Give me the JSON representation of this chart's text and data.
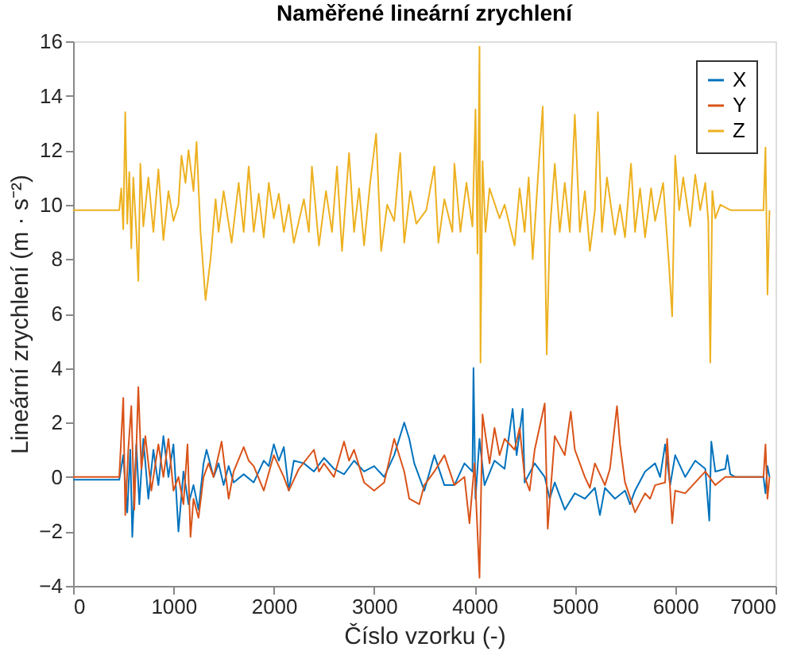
{
  "chart_data": {
    "type": "line",
    "title": "Naměřené lineární zrychlení",
    "xlabel": "Číslo vzorku (-)",
    "ylabel": "Lineární zrychlení (m · s⁻²)",
    "xlim": [
      0,
      7000
    ],
    "xticks": [
      0,
      1000,
      2000,
      3000,
      4000,
      5000,
      6000,
      7000
    ],
    "ylim": [
      -4,
      16
    ],
    "yticks": [
      -4,
      -2,
      0,
      2,
      4,
      6,
      8,
      10,
      12,
      14,
      16
    ],
    "grid": false,
    "legend": "top right",
    "marker": "none",
    "line_style": "solid",
    "series": [
      {
        "name": "X",
        "color": "#0072bd",
        "x": [
          0,
          460,
          500,
          540,
          570,
          590,
          630,
          660,
          700,
          750,
          800,
          850,
          900,
          950,
          1000,
          1050,
          1100,
          1150,
          1200,
          1250,
          1300,
          1330,
          1400,
          1450,
          1500,
          1550,
          1600,
          1700,
          1800,
          1900,
          1950,
          2000,
          2050,
          2100,
          2150,
          2200,
          2300,
          2400,
          2500,
          2600,
          2700,
          2800,
          2900,
          3000,
          3100,
          3200,
          3300,
          3350,
          3400,
          3500,
          3600,
          3700,
          3800,
          3900,
          3980,
          3990,
          4010,
          4050,
          4100,
          4200,
          4300,
          4380,
          4420,
          4480,
          4500,
          4600,
          4700,
          4750,
          4800,
          4900,
          5000,
          5100,
          5200,
          5250,
          5300,
          5400,
          5500,
          5550,
          5600,
          5700,
          5800,
          5850,
          5900,
          5950,
          6000,
          6100,
          6200,
          6300,
          6340,
          6360,
          6400,
          6500,
          6520,
          6550,
          6600,
          6880,
          6900,
          6920,
          6940
        ],
        "values": [
          -0.1,
          -0.1,
          0.8,
          -1.3,
          1.0,
          -2.2,
          1.2,
          -1.0,
          1.4,
          -0.8,
          1.0,
          -0.3,
          1.5,
          0.0,
          1.2,
          -2.0,
          0.2,
          -1.0,
          -0.3,
          -1.2,
          0.5,
          1.0,
          0.0,
          0.5,
          -0.3,
          0.4,
          -0.2,
          0.1,
          -0.2,
          0.6,
          0.4,
          1.2,
          0.6,
          1.1,
          -0.5,
          0.6,
          0.5,
          0.2,
          0.7,
          0.3,
          0.1,
          0.6,
          0.2,
          0.4,
          0.0,
          0.8,
          2.0,
          1.4,
          0.5,
          -0.5,
          0.8,
          -0.3,
          -0.3,
          0.5,
          0.2,
          4.0,
          -0.8,
          1.4,
          -0.3,
          0.6,
          0.3,
          2.5,
          0.8,
          2.5,
          -0.2,
          0.5,
          0.0,
          -0.8,
          -0.2,
          -1.2,
          -0.6,
          -0.8,
          -0.4,
          -1.4,
          -0.4,
          -0.8,
          -0.5,
          -1.0,
          -0.5,
          0.2,
          0.5,
          0.0,
          1.2,
          -0.3,
          0.8,
          0.0,
          0.6,
          0.3,
          -1.6,
          1.3,
          0.2,
          0.3,
          0.8,
          0.1,
          0.0,
          0.0,
          -0.6,
          0.4,
          0.0
        ]
      },
      {
        "name": "Y",
        "color": "#d95319",
        "x": [
          0,
          460,
          500,
          520,
          550,
          580,
          610,
          650,
          680,
          720,
          780,
          850,
          900,
          950,
          1000,
          1050,
          1100,
          1140,
          1170,
          1200,
          1250,
          1300,
          1350,
          1400,
          1480,
          1550,
          1600,
          1700,
          1750,
          1800,
          1900,
          2000,
          2100,
          2150,
          2250,
          2400,
          2450,
          2500,
          2600,
          2700,
          2750,
          2800,
          2900,
          3000,
          3100,
          3200,
          3300,
          3350,
          3450,
          3500,
          3600,
          3700,
          3800,
          3900,
          3950,
          4000,
          4050,
          4080,
          4150,
          4200,
          4250,
          4300,
          4400,
          4450,
          4500,
          4550,
          4600,
          4700,
          4730,
          4800,
          4900,
          4960,
          5000,
          5100,
          5150,
          5200,
          5300,
          5350,
          5420,
          5450,
          5500,
          5600,
          5700,
          5750,
          5800,
          5900,
          5920,
          5970,
          6000,
          6100,
          6200,
          6300,
          6400,
          6500,
          6600,
          6880,
          6900,
          6920,
          6940
        ],
        "values": [
          0.0,
          0.0,
          2.9,
          -1.4,
          1.0,
          2.6,
          -1.2,
          3.3,
          0.3,
          1.5,
          -0.5,
          1.2,
          0.0,
          1.4,
          -0.5,
          0.0,
          -1.0,
          1.2,
          -2.2,
          -0.8,
          -1.5,
          0.0,
          0.5,
          0.0,
          1.3,
          -0.8,
          0.2,
          1.1,
          0.6,
          0.4,
          -0.5,
          0.8,
          0.0,
          -0.5,
          0.3,
          1.0,
          0.2,
          0.5,
          0.0,
          1.3,
          0.6,
          1.0,
          -0.2,
          -0.5,
          -0.2,
          1.4,
          0.2,
          -0.8,
          -1.0,
          -0.3,
          0.2,
          0.8,
          -0.3,
          0.0,
          -1.7,
          0.5,
          -3.7,
          2.3,
          0.5,
          1.8,
          0.8,
          1.4,
          1.0,
          1.8,
          0.0,
          -0.5,
          1.0,
          2.7,
          -1.9,
          1.5,
          0.8,
          2.4,
          1.0,
          0.0,
          -0.4,
          0.5,
          -0.3,
          0.3,
          2.6,
          1.2,
          -0.2,
          -1.3,
          -0.6,
          -0.8,
          -0.3,
          -0.2,
          1.4,
          -1.7,
          -0.5,
          -0.6,
          -0.2,
          0.2,
          -0.3,
          0.0,
          0.0,
          0.0,
          1.2,
          -0.8,
          0.0
        ]
      },
      {
        "name": "Z",
        "color": "#edb120",
        "x": [
          0,
          460,
          480,
          500,
          520,
          540,
          560,
          580,
          600,
          630,
          650,
          670,
          700,
          750,
          800,
          850,
          900,
          950,
          1000,
          1050,
          1080,
          1120,
          1150,
          1200,
          1230,
          1270,
          1320,
          1370,
          1420,
          1450,
          1500,
          1580,
          1650,
          1700,
          1750,
          1800,
          1850,
          1900,
          1950,
          2000,
          2050,
          2100,
          2150,
          2200,
          2300,
          2350,
          2380,
          2450,
          2520,
          2580,
          2630,
          2680,
          2750,
          2800,
          2850,
          2900,
          2960,
          3020,
          3070,
          3130,
          3200,
          3260,
          3300,
          3360,
          3420,
          3520,
          3600,
          3640,
          3700,
          3780,
          3800,
          3860,
          3920,
          3980,
          4010,
          4030,
          4050,
          4060,
          4080,
          4110,
          4150,
          4250,
          4300,
          4400,
          4450,
          4500,
          4540,
          4580,
          4650,
          4680,
          4720,
          4750,
          4800,
          4850,
          4900,
          4950,
          5000,
          5050,
          5100,
          5150,
          5200,
          5230,
          5270,
          5320,
          5400,
          5450,
          5500,
          5560,
          5600,
          5650,
          5700,
          5760,
          5800,
          5880,
          5940,
          5970,
          6000,
          6040,
          6080,
          6150,
          6200,
          6250,
          6300,
          6330,
          6350,
          6370,
          6400,
          6450,
          6550,
          6880,
          6900,
          6920,
          6940
        ],
        "values": [
          9.8,
          9.8,
          10.6,
          9.1,
          13.4,
          9.3,
          11.2,
          8.4,
          11.0,
          9.0,
          7.2,
          11.5,
          9.2,
          11.0,
          9.0,
          11.3,
          8.7,
          10.5,
          9.4,
          10.0,
          11.8,
          10.8,
          12.0,
          10.5,
          12.3,
          9.0,
          6.5,
          8.0,
          10.2,
          9.0,
          10.5,
          8.6,
          10.8,
          9.0,
          11.4,
          9.0,
          10.4,
          8.8,
          10.8,
          9.5,
          10.4,
          9.0,
          10.0,
          8.6,
          10.2,
          9.0,
          11.4,
          8.5,
          10.5,
          9.0,
          11.4,
          8.3,
          11.9,
          9.0,
          10.6,
          8.5,
          10.8,
          12.6,
          8.3,
          10.0,
          9.4,
          11.9,
          8.6,
          10.5,
          9.3,
          9.8,
          11.4,
          8.6,
          10.2,
          9.0,
          11.5,
          9.0,
          10.8,
          9.2,
          13.5,
          8.2,
          15.8,
          4.2,
          11.6,
          9.0,
          10.6,
          9.5,
          10.0,
          8.5,
          10.6,
          9.0,
          11.0,
          8.0,
          12.0,
          13.6,
          4.5,
          9.0,
          11.5,
          9.0,
          10.8,
          9.0,
          13.3,
          9.0,
          10.5,
          8.3,
          9.8,
          13.4,
          9.0,
          11.0,
          8.9,
          10.0,
          8.8,
          11.5,
          9.0,
          10.6,
          8.8,
          10.6,
          9.4,
          10.8,
          7.7,
          5.9,
          11.8,
          9.8,
          11.0,
          9.2,
          11.1,
          9.8,
          10.8,
          9.4,
          4.2,
          10.5,
          9.5,
          10.0,
          9.8,
          9.8,
          12.1,
          6.7,
          9.8
        ]
      }
    ]
  }
}
